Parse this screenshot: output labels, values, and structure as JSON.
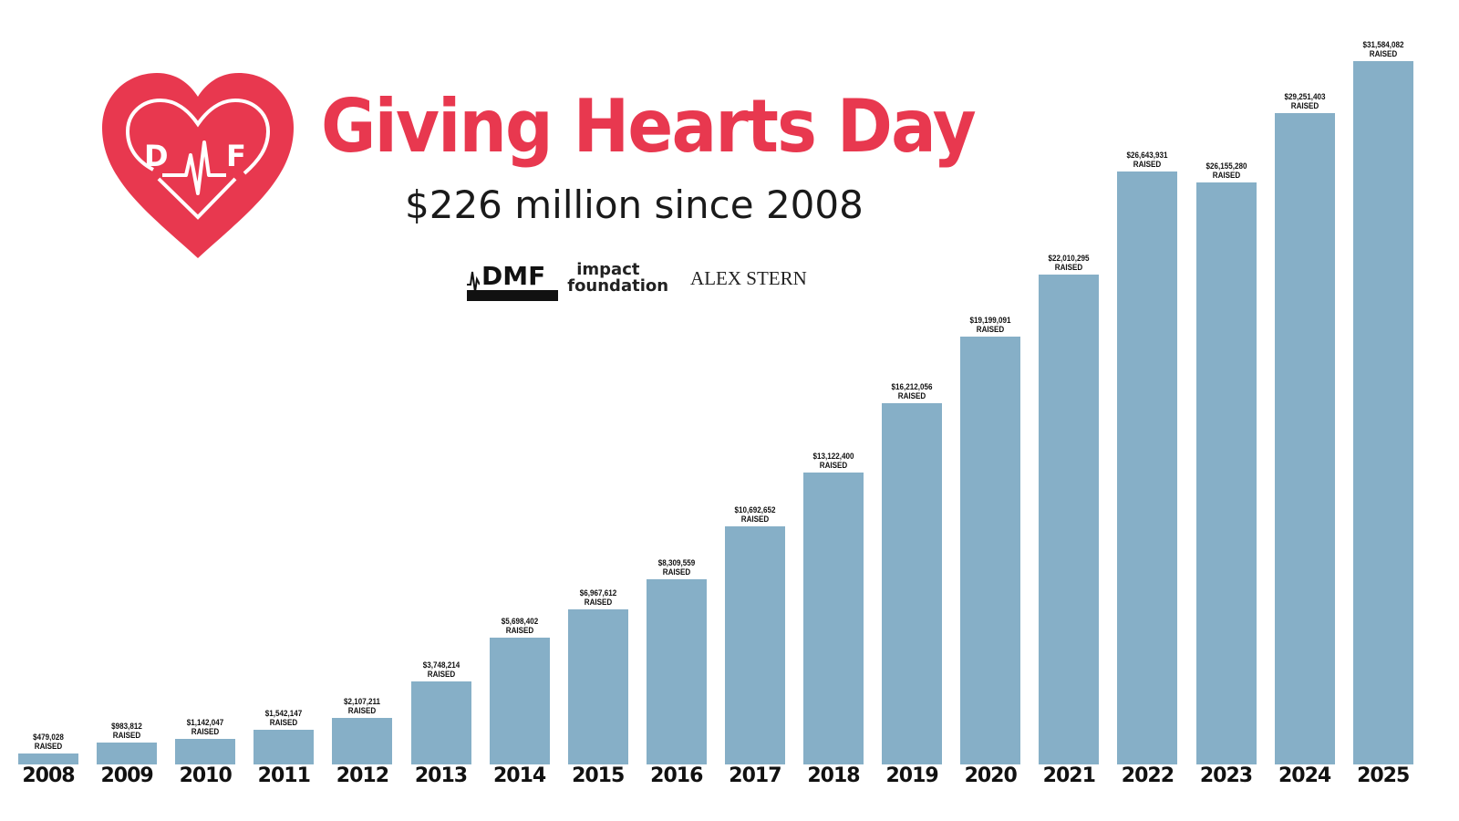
{
  "header": {
    "title": "Giving Hearts Day",
    "subtitle": "$226 million since 2008",
    "logo_text": "DMF",
    "brand_color": "#e8384f"
  },
  "sponsors": [
    {
      "name": "DMF"
    },
    {
      "line1": "impact",
      "line2": "foundation"
    },
    {
      "name": "ALEX STERN"
    }
  ],
  "chart_data": {
    "type": "bar",
    "title": "Giving Hearts Day",
    "subtitle": "$226 million since 2008",
    "xlabel": "",
    "ylabel": "",
    "ylim": [
      0,
      32000000
    ],
    "grid": false,
    "bar_color": "#86afc7",
    "label_suffix": "RAISED",
    "categories": [
      "2008",
      "2009",
      "2010",
      "2011",
      "2012",
      "2013",
      "2014",
      "2015",
      "2016",
      "2017",
      "2018",
      "2019",
      "2020",
      "2021",
      "2022",
      "2023",
      "2024",
      "2025"
    ],
    "values": [
      479028,
      983812,
      1142047,
      1542147,
      2107211,
      3748214,
      5698402,
      6967612,
      8309559,
      10692652,
      13122400,
      16212056,
      19199091,
      22010295,
      26643931,
      26155280,
      29251403,
      31584082
    ],
    "labels": [
      "$479,028",
      "$983,812",
      "$1,142,047",
      "$1,542,147",
      "$2,107,211",
      "$3,748,214",
      "$5,698,402",
      "$6,967,612",
      "$8,309,559",
      "$10,692,652",
      "$13,122,400",
      "$16,212,056",
      "$19,199,091",
      "$22,010,295",
      "$26,643,931",
      "$26,155,280",
      "$29,251,403",
      "$31,584,082"
    ]
  }
}
